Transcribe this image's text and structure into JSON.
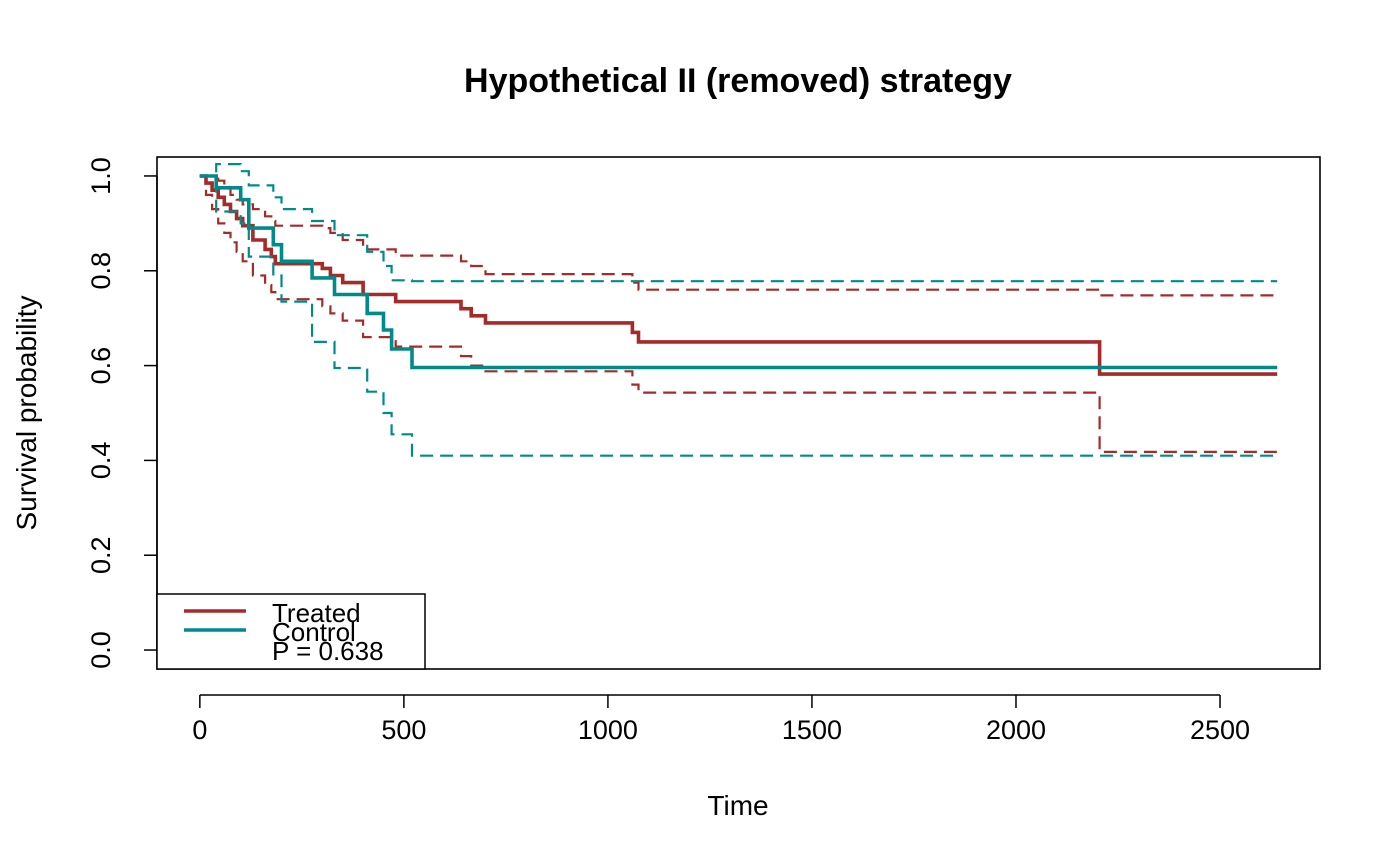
{
  "chart_data": {
    "type": "line",
    "title": "Hypothetical II (removed) strategy",
    "xlabel": "Time",
    "ylabel": "Survival probability",
    "xlim": [
      -105,
      2745
    ],
    "ylim": [
      -0.04,
      1.04
    ],
    "xticks": [
      0,
      500,
      1000,
      1500,
      2000,
      2500
    ],
    "yticks": [
      0.0,
      0.2,
      0.4,
      0.6,
      0.8,
      1.0
    ],
    "xtick_labels": [
      "0",
      "500",
      "1000",
      "1500",
      "2000",
      "2500"
    ],
    "ytick_labels": [
      "0.0",
      "0.2",
      "0.4",
      "0.6",
      "0.8",
      "1.0"
    ],
    "grid": false,
    "legend_position": "bottom-left",
    "annotation": "P = 0.638",
    "series": [
      {
        "name": "Treated",
        "color": "#A52A2A",
        "x": [
          0,
          15,
          30,
          45,
          60,
          75,
          90,
          105,
          130,
          160,
          175,
          185,
          200,
          300,
          320,
          350,
          400,
          480,
          640,
          665,
          700,
          1060,
          1075,
          2205,
          2640
        ],
        "y": [
          1.0,
          0.985,
          0.97,
          0.955,
          0.94,
          0.925,
          0.91,
          0.895,
          0.865,
          0.845,
          0.83,
          0.815,
          0.815,
          0.805,
          0.79,
          0.775,
          0.75,
          0.735,
          0.72,
          0.705,
          0.69,
          0.67,
          0.65,
          0.582,
          0.582
        ],
        "lower": [
          1.0,
          0.96,
          0.93,
          0.9,
          0.88,
          0.86,
          0.84,
          0.82,
          0.79,
          0.77,
          0.755,
          0.74,
          0.74,
          0.725,
          0.71,
          0.695,
          0.66,
          0.64,
          0.62,
          0.6,
          0.588,
          0.56,
          0.543,
          0.418,
          0.418
        ],
        "upper": [
          1.0,
          1.0,
          1.0,
          0.99,
          0.975,
          0.96,
          0.95,
          0.94,
          0.93,
          0.915,
          0.905,
          0.895,
          0.895,
          0.89,
          0.88,
          0.865,
          0.845,
          0.832,
          0.82,
          0.81,
          0.793,
          0.775,
          0.76,
          0.748,
          0.748
        ]
      },
      {
        "name": "Control",
        "color": "#008B8B",
        "x": [
          0,
          40,
          100,
          120,
          180,
          200,
          275,
          330,
          410,
          450,
          470,
          520,
          2640
        ],
        "y": [
          1.0,
          0.975,
          0.95,
          0.89,
          0.855,
          0.82,
          0.785,
          0.75,
          0.71,
          0.675,
          0.635,
          0.596,
          0.596
        ],
        "lower": [
          1.0,
          0.925,
          0.9,
          0.83,
          0.79,
          0.735,
          0.65,
          0.595,
          0.545,
          0.5,
          0.455,
          0.41,
          0.41
        ],
        "upper": [
          1.0,
          1.025,
          1.01,
          0.98,
          0.955,
          0.93,
          0.905,
          0.875,
          0.84,
          0.81,
          0.78,
          0.778,
          0.778
        ]
      }
    ]
  }
}
